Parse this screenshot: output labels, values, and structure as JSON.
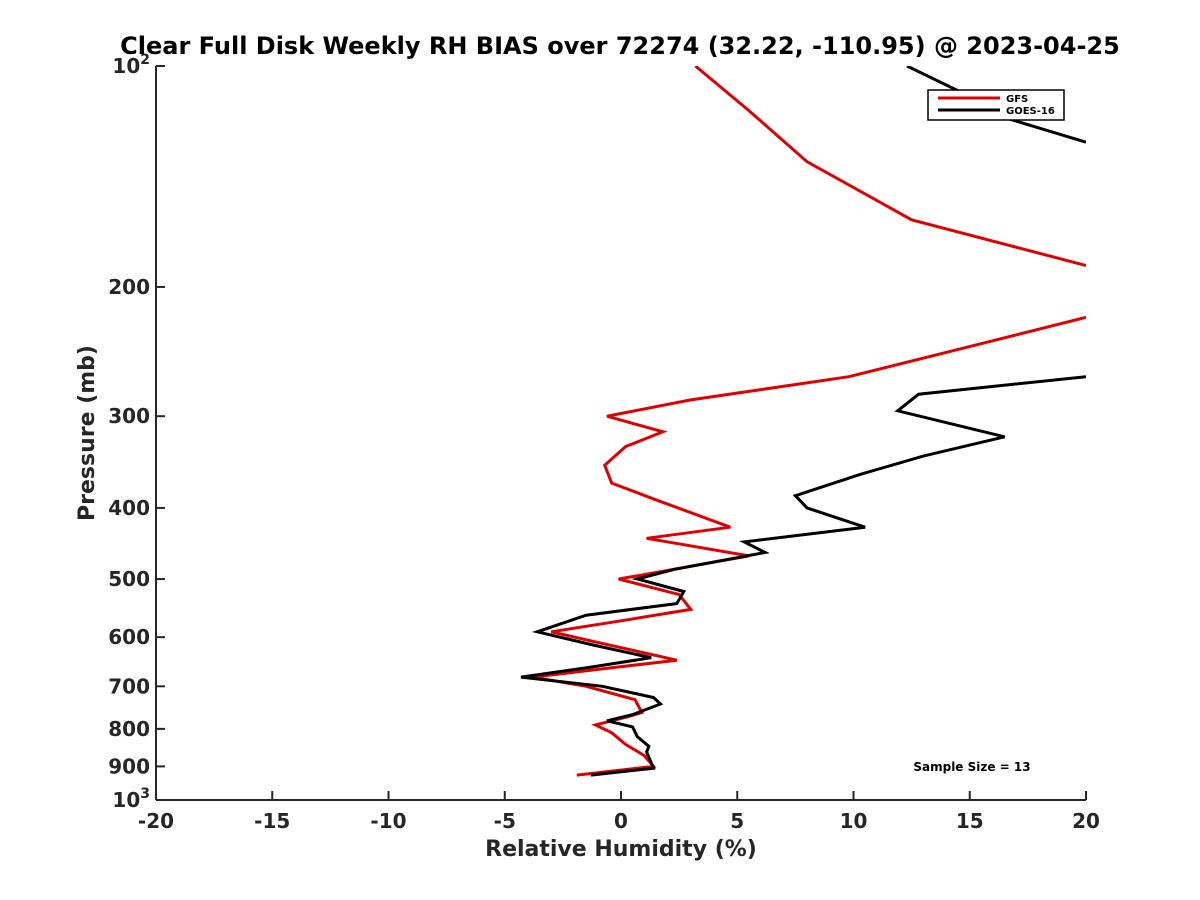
{
  "chart_data": {
    "type": "line",
    "title": "Clear Full Disk Weekly RH BIAS over 72274 (32.22, -110.95) @ 2023-04-25",
    "xlabel": "Relative Humidity (%)",
    "ylabel": "Pressure (mb)",
    "xlim": [
      -20,
      20
    ],
    "ylim": [
      100,
      1000
    ],
    "y_scale": "log",
    "y_reversed": true,
    "x_ticks": [
      "-20",
      "-15",
      "-10",
      "-5",
      "0",
      "5",
      "10",
      "15",
      "20"
    ],
    "y_ticks": [
      {
        "value": 100,
        "label": "10",
        "sup": "2"
      },
      {
        "value": 200,
        "label": "200",
        "sup": ""
      },
      {
        "value": 300,
        "label": "300",
        "sup": ""
      },
      {
        "value": 400,
        "label": "400",
        "sup": ""
      },
      {
        "value": 500,
        "label": "500",
        "sup": ""
      },
      {
        "value": 600,
        "label": "600",
        "sup": ""
      },
      {
        "value": 700,
        "label": "700",
        "sup": ""
      },
      {
        "value": 800,
        "label": "800",
        "sup": ""
      },
      {
        "value": 900,
        "label": "900",
        "sup": ""
      },
      {
        "value": 1000,
        "label": "10",
        "sup": "3"
      }
    ],
    "legend_position": "top-right",
    "annotation": "Sample Size = 13",
    "series": [
      {
        "name": "GFS",
        "color": "#dd0000",
        "points": [
          [
            3.2,
            100
          ],
          [
            5.5,
            115
          ],
          [
            8,
            135
          ],
          [
            12.5,
            162
          ],
          [
            20,
            187
          ],
          [
            null,
            null
          ],
          [
            20,
            220
          ],
          [
            14.8,
            242
          ],
          [
            9.8,
            265
          ],
          [
            3,
            285
          ],
          [
            -0.6,
            300
          ],
          [
            1.8,
            315
          ],
          [
            0.2,
            330
          ],
          [
            -0.7,
            350
          ],
          [
            -0.4,
            370
          ],
          [
            1.5,
            390
          ],
          [
            4.7,
            425
          ],
          [
            1.1,
            440
          ],
          [
            5.5,
            465
          ],
          [
            0.7,
            495
          ],
          [
            -0.1,
            500
          ],
          [
            2.5,
            525
          ],
          [
            3,
            550
          ],
          [
            0,
            570
          ],
          [
            -3,
            590
          ],
          [
            -1,
            610
          ],
          [
            2.4,
            645
          ],
          [
            -0.3,
            660
          ],
          [
            -3.8,
            680
          ],
          [
            -1.5,
            700
          ],
          [
            0.6,
            730
          ],
          [
            0.9,
            760
          ],
          [
            0.3,
            770
          ],
          [
            -1.1,
            790
          ],
          [
            -0.4,
            810
          ],
          [
            0.2,
            840
          ],
          [
            1,
            870
          ],
          [
            1.4,
            900
          ],
          [
            -1.9,
            925
          ]
        ]
      },
      {
        "name": "GOES-16",
        "color": "#000000",
        "points": [
          [
            12.3,
            100
          ],
          [
            15,
            110
          ],
          [
            15.5,
            115
          ],
          [
            20,
            127
          ],
          [
            null,
            null
          ],
          [
            20,
            265
          ],
          [
            12.8,
            280
          ],
          [
            11.9,
            295
          ],
          [
            16.5,
            320
          ],
          [
            13,
            340
          ],
          [
            10.3,
            360
          ],
          [
            7.5,
            385
          ],
          [
            8,
            400
          ],
          [
            10.5,
            425
          ],
          [
            5.3,
            445
          ],
          [
            6.2,
            460
          ],
          [
            2.3,
            485
          ],
          [
            0.7,
            500
          ],
          [
            2.7,
            520
          ],
          [
            2.4,
            540
          ],
          [
            -1.5,
            560
          ],
          [
            -3.6,
            590
          ],
          [
            -1.2,
            615
          ],
          [
            1.3,
            640
          ],
          [
            -1.4,
            660
          ],
          [
            -4.3,
            680
          ],
          [
            -0.8,
            700
          ],
          [
            1.4,
            725
          ],
          [
            1.7,
            740
          ],
          [
            0.5,
            765
          ],
          [
            -0.6,
            780
          ],
          [
            0.5,
            795
          ],
          [
            0.7,
            820
          ],
          [
            1.2,
            845
          ],
          [
            1.1,
            860
          ],
          [
            1.4,
            905
          ],
          [
            -1.3,
            925
          ]
        ]
      }
    ]
  }
}
